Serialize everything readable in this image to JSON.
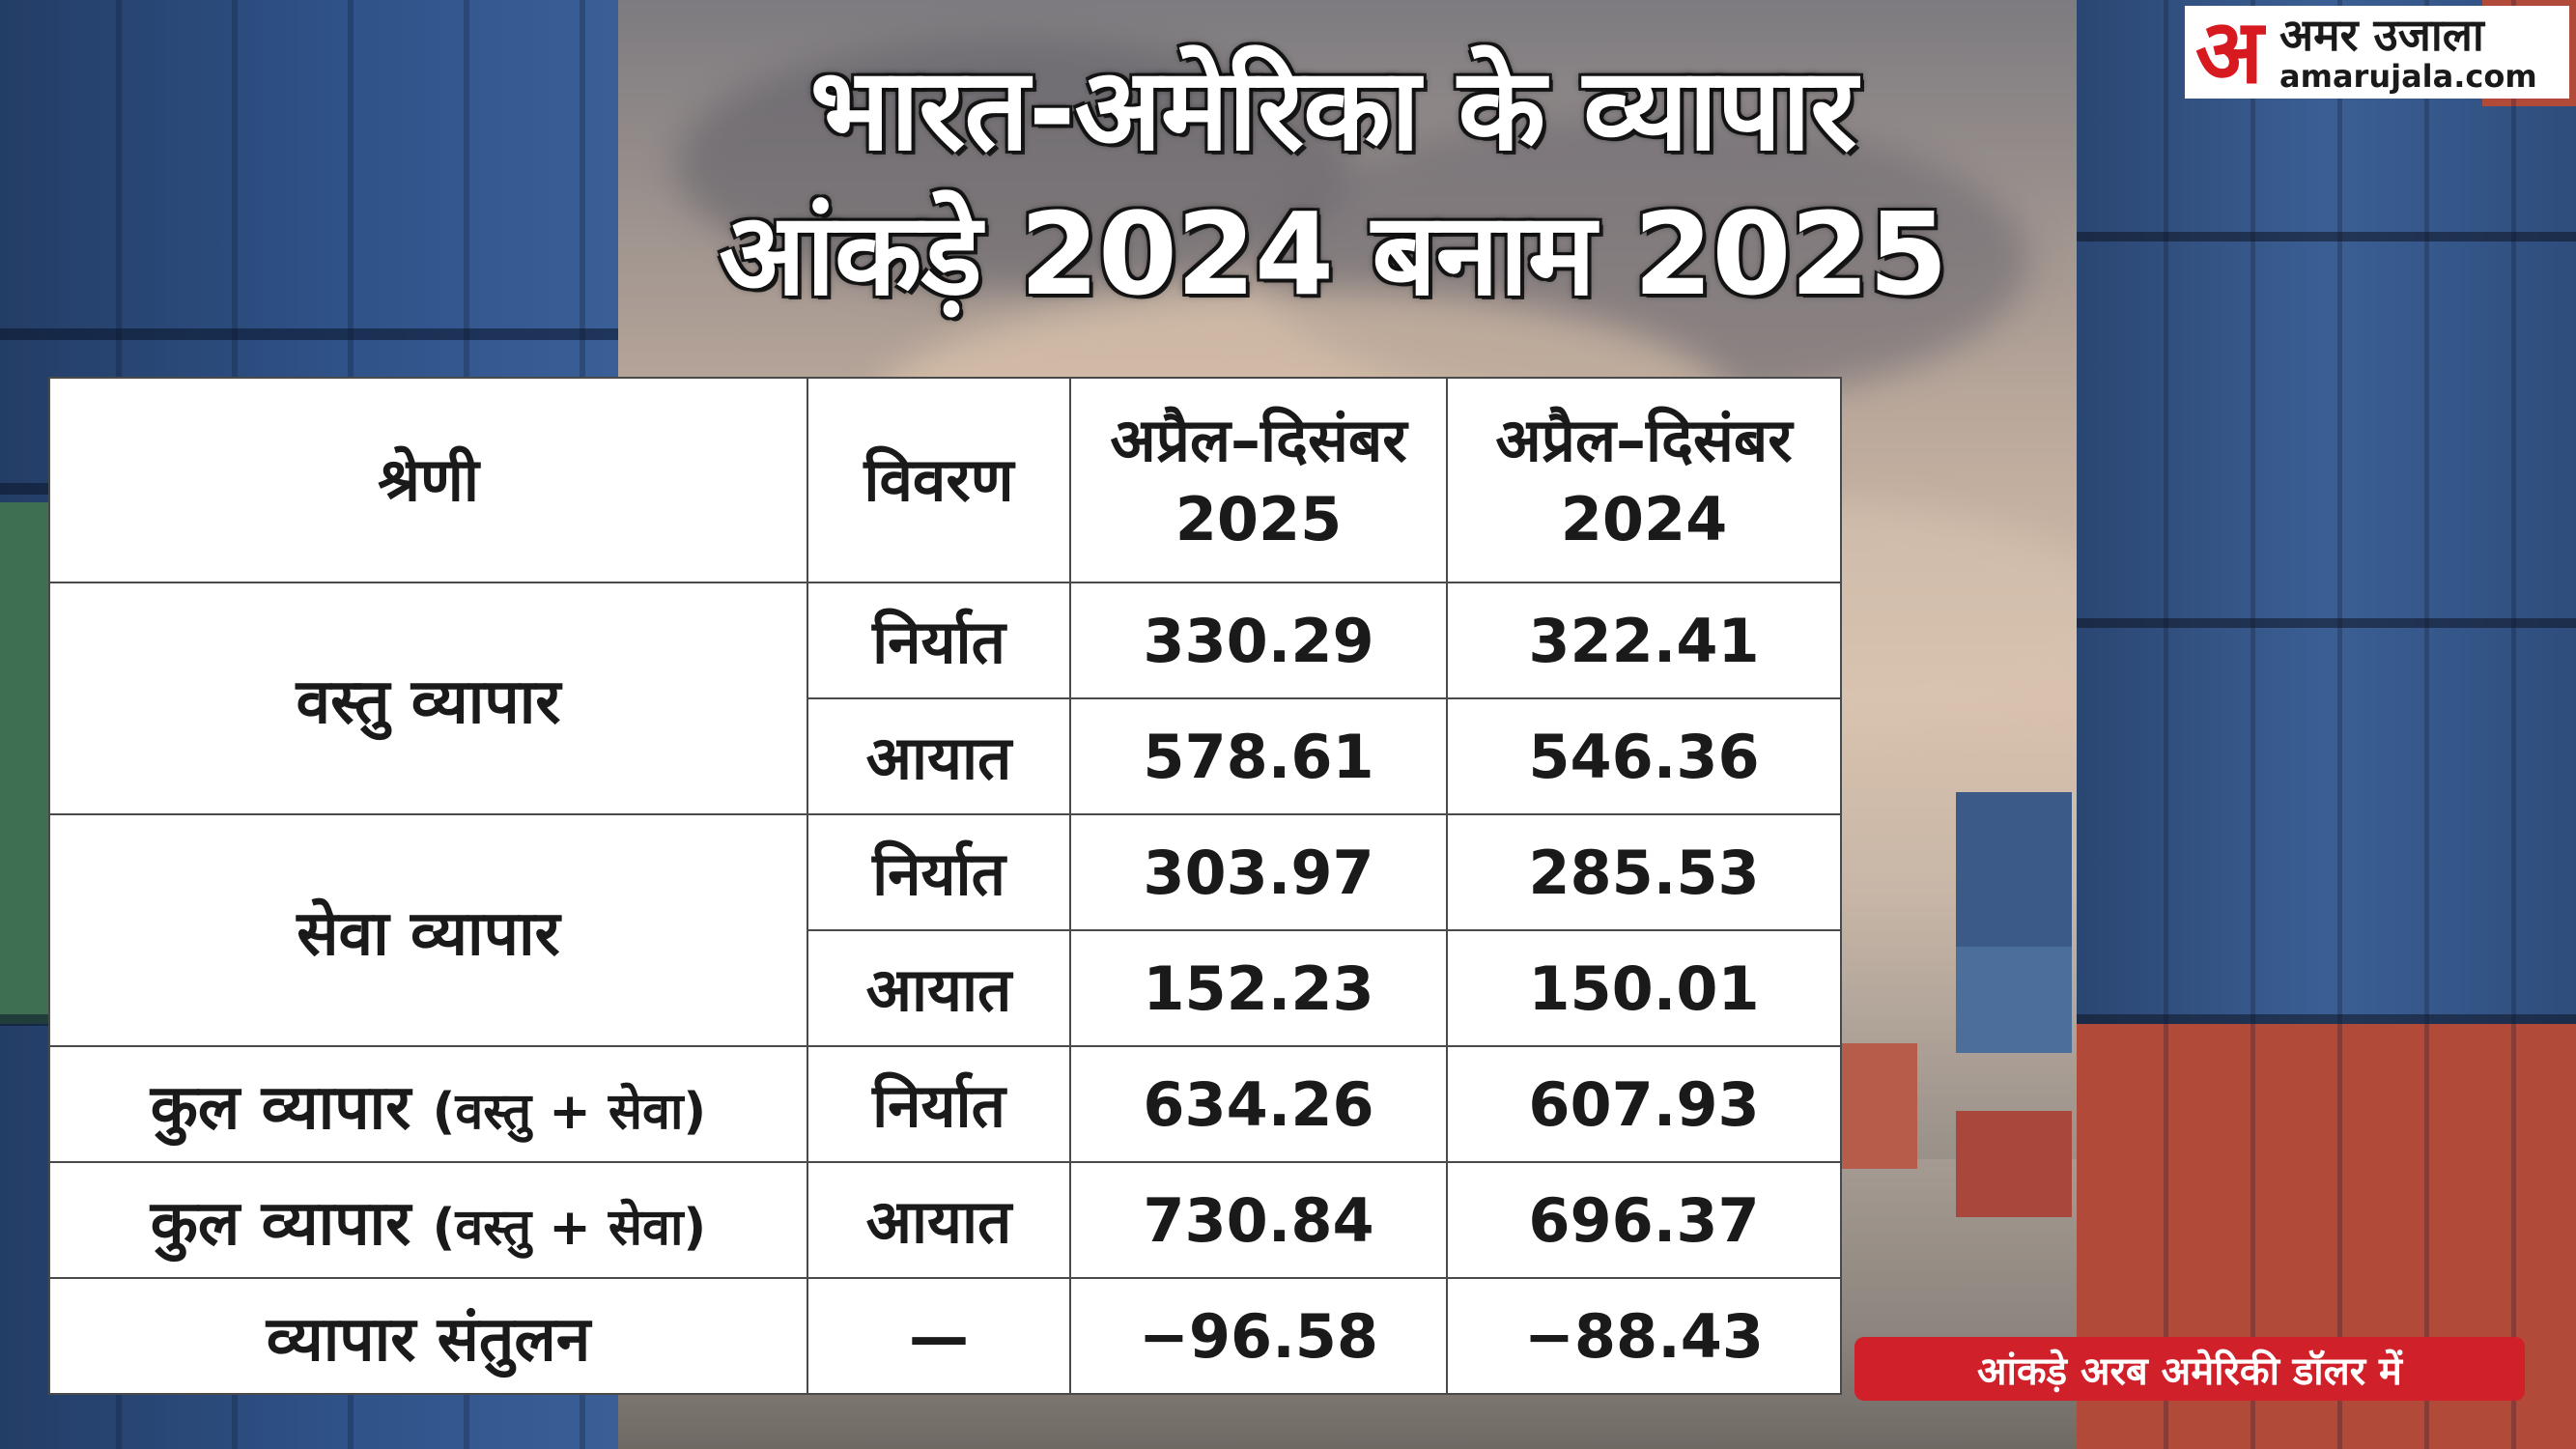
{
  "title": {
    "line1": "भारत-अमेरिका के व्यापार",
    "line2": "आंकड़े 2024 बनाम 2025"
  },
  "logo": {
    "mark": "अ",
    "name": "अमर उजाला",
    "url": "amarujala.com",
    "brand_color": "#d71920"
  },
  "table": {
    "headers": {
      "category": "श्रेणी",
      "details": "विवरण",
      "period_2025_line1": "अप्रैल–दिसंबर",
      "period_2025_line2": "2025",
      "period_2024_line1": "अप्रैल–दिसंबर",
      "period_2024_line2": "2024"
    },
    "groups": {
      "goods": "वस्तु व्यापार",
      "services": "सेवा व्यापार",
      "total_export_main": "कुल व्यापार",
      "total_export_paren": "(वस्तु + सेवा)",
      "total_import_main": "कुल व्यापार",
      "total_import_paren": "(वस्तु + सेवा)",
      "balance": "व्यापार संतुलन"
    },
    "rows": [
      {
        "detail": "निर्यात",
        "v2025": "330.29",
        "v2024": "322.41"
      },
      {
        "detail": "आयात",
        "v2025": "578.61",
        "v2024": "546.36"
      },
      {
        "detail": "निर्यात",
        "v2025": "303.97",
        "v2024": "285.53"
      },
      {
        "detail": "आयात",
        "v2025": "152.23",
        "v2024": "150.01"
      },
      {
        "detail": "निर्यात",
        "v2025": "634.26",
        "v2024": "607.93"
      },
      {
        "detail": "आयात",
        "v2025": "730.84",
        "v2024": "696.37"
      },
      {
        "detail": "—",
        "v2025": "−96.58",
        "v2024": "−88.43"
      }
    ]
  },
  "note": "आंकड़े अरब अमेरिकी डॉलर में",
  "colors": {
    "note_bg": "#d0202a",
    "table_border": "#4a4a4a",
    "title_text": "#ffffff"
  }
}
